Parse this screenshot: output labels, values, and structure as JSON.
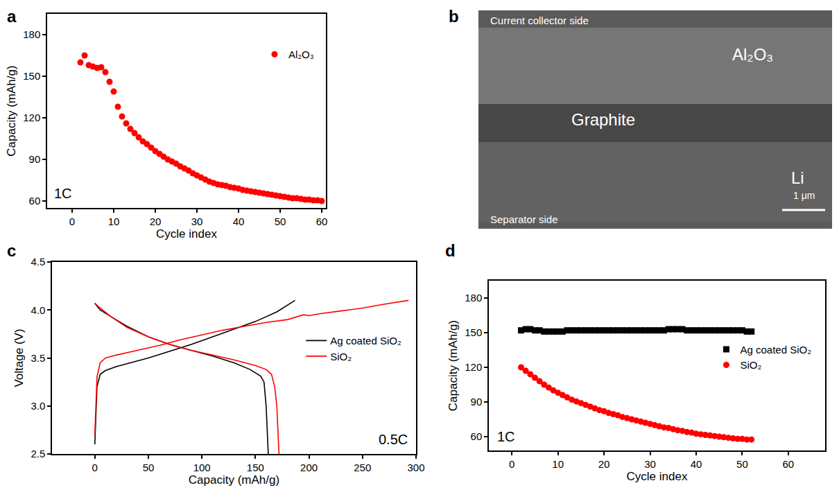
{
  "chart_data": [
    {
      "panel": "a",
      "type": "scatter",
      "x_label": "Cycle index",
      "y_label": "Capacity (mAh/g)",
      "xlim": [
        -6,
        61
      ],
      "xticks": [
        0,
        10,
        20,
        30,
        40,
        50,
        60
      ],
      "ylim": [
        55,
        195
      ],
      "yticks": [
        60,
        90,
        120,
        150,
        180
      ],
      "grid": false,
      "legend": "top right",
      "annotations": [
        "1C"
      ],
      "x": [
        2,
        3,
        4,
        5,
        6,
        7,
        8,
        9,
        10,
        11,
        12,
        13,
        14,
        15,
        16,
        17,
        18,
        19,
        20,
        21,
        22,
        23,
        24,
        25,
        26,
        27,
        28,
        29,
        30,
        31,
        32,
        33,
        34,
        35,
        36,
        37,
        38,
        39,
        40,
        41,
        42,
        43,
        44,
        45,
        46,
        47,
        48,
        49,
        50,
        51,
        52,
        53,
        54,
        55,
        56,
        57,
        58,
        59,
        60
      ],
      "series": [
        {
          "name": "Al₂O₃",
          "color": "#ff0000",
          "marker": "circle",
          "values": [
            160,
            165,
            158,
            157,
            156,
            156.5,
            153,
            146,
            139,
            128,
            121,
            116,
            112,
            109,
            106,
            103,
            101,
            98.5,
            96,
            94,
            92,
            90,
            88.5,
            87,
            85,
            83.5,
            82,
            80,
            78.5,
            77,
            75.5,
            74,
            73,
            72,
            71.5,
            71,
            70,
            69.5,
            69,
            68,
            67.5,
            67,
            66.5,
            66,
            65.5,
            65,
            64.5,
            64,
            63.5,
            63,
            62.5,
            62,
            62,
            61.5,
            61,
            61,
            60.5,
            60.5,
            60
          ]
        }
      ]
    },
    {
      "panel": "b",
      "type": "image",
      "labels": [
        "Current collector side",
        "Al₂O₃",
        "Graphite",
        "Li",
        "Separator side"
      ],
      "scale_bar": "1 μm"
    },
    {
      "panel": "c",
      "type": "line",
      "x_label": "Capacity (mAh/g)",
      "y_label": "Voltage (V)",
      "xlim": [
        -40,
        300
      ],
      "xticks": [
        0,
        50,
        100,
        150,
        200,
        250,
        300
      ],
      "ylim": [
        2.5,
        4.5
      ],
      "yticks": [
        2.5,
        {
          "value": 3,
          "label": "3.0"
        },
        3.5,
        {
          "value": 4,
          "label": "4.0"
        },
        4.5
      ],
      "grid": false,
      "legend": "right",
      "annotations": [
        "0.5C"
      ],
      "series": [
        {
          "name": "Ag coated SiO₂",
          "color": "#000000",
          "line_style": "solid",
          "x": [
            0,
            2,
            5,
            10,
            20,
            30,
            50,
            70,
            90,
            110,
            130,
            150,
            170,
            187,
            null,
            0,
            5,
            15,
            30,
            50,
            70,
            90,
            110,
            130,
            145,
            155,
            158,
            160,
            161,
            162
          ],
          "values": [
            2.6,
            3.2,
            3.33,
            3.37,
            3.41,
            3.44,
            3.5,
            3.57,
            3.64,
            3.72,
            3.8,
            3.88,
            3.98,
            4.1,
            null,
            4.07,
            4.0,
            3.93,
            3.83,
            3.72,
            3.64,
            3.58,
            3.52,
            3.45,
            3.38,
            3.31,
            3.25,
            3.0,
            2.7,
            2.5
          ]
        },
        {
          "name": "SiO₂",
          "color": "#ff0000",
          "line_style": "solid",
          "x": [
            0,
            2,
            5,
            10,
            20,
            40,
            60,
            80,
            100,
            120,
            140,
            160,
            180,
            190,
            195,
            200,
            210,
            230,
            250,
            270,
            293,
            null,
            0,
            5,
            15,
            30,
            50,
            70,
            90,
            110,
            130,
            150,
            160,
            165,
            168,
            170,
            171,
            172
          ],
          "values": [
            2.7,
            3.3,
            3.45,
            3.5,
            3.53,
            3.58,
            3.63,
            3.69,
            3.74,
            3.79,
            3.83,
            3.87,
            3.9,
            3.93,
            3.95,
            3.94,
            3.96,
            3.99,
            4.02,
            4.06,
            4.1,
            null,
            4.07,
            4.02,
            3.93,
            3.82,
            3.72,
            3.64,
            3.58,
            3.53,
            3.48,
            3.42,
            3.38,
            3.33,
            3.2,
            3.0,
            2.7,
            2.5
          ]
        }
      ]
    },
    {
      "panel": "d",
      "type": "scatter",
      "x_label": "Cycle index",
      "y_label": "Capacity (mAh/g)",
      "xlim": [
        -5,
        68
      ],
      "xticks": [
        0,
        10,
        20,
        30,
        40,
        50,
        60
      ],
      "ylim": [
        48,
        195
      ],
      "yticks": [
        60,
        90,
        120,
        150,
        180
      ],
      "grid": false,
      "legend": "right",
      "annotations": [
        "1C"
      ],
      "x": [
        2,
        3,
        4,
        5,
        6,
        7,
        8,
        9,
        10,
        11,
        12,
        13,
        14,
        15,
        16,
        17,
        18,
        19,
        20,
        21,
        22,
        23,
        24,
        25,
        26,
        27,
        28,
        29,
        30,
        31,
        32,
        33,
        34,
        35,
        36,
        37,
        38,
        39,
        40,
        41,
        42,
        43,
        44,
        45,
        46,
        47,
        48,
        49,
        50,
        51,
        52
      ],
      "series": [
        {
          "name": "Ag coated SiO₂",
          "color": "#000000",
          "marker": "square",
          "values": [
            152,
            153,
            153,
            152,
            152,
            151,
            151,
            151,
            151,
            151,
            152,
            152,
            152,
            152,
            152,
            152,
            152,
            152,
            152,
            152,
            152,
            152,
            152,
            152,
            152,
            152,
            152,
            152,
            152,
            152,
            152,
            152,
            153,
            153,
            153,
            153,
            152,
            152,
            152,
            152,
            152,
            152,
            152,
            152,
            152,
            152,
            152,
            152,
            152,
            151,
            151
          ]
        },
        {
          "name": "SiO₂",
          "color": "#ff0000",
          "marker": "circle",
          "values": [
            120,
            117,
            114,
            111,
            108,
            105,
            102.5,
            100,
            98,
            96,
            94,
            92,
            90.5,
            89,
            87.5,
            86,
            84.5,
            83,
            82,
            80.5,
            79.5,
            78.5,
            77,
            76,
            75,
            74,
            73,
            72,
            71,
            70,
            69,
            68,
            67.5,
            66.5,
            65.5,
            65,
            64,
            63.5,
            62.5,
            62,
            61.5,
            61,
            60.5,
            60,
            59.5,
            59,
            58.5,
            58,
            58,
            57.5,
            57.5
          ]
        }
      ]
    }
  ]
}
